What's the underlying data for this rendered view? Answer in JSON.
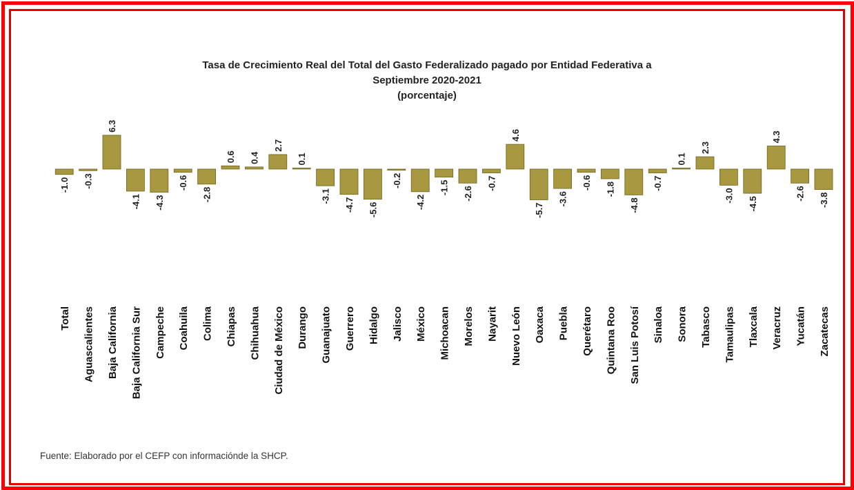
{
  "chart_data": {
    "type": "bar",
    "title_lines": [
      "Tasa de Crecimiento Real del Total del Gasto Federalizado pagado por Entidad Federativa a",
      "Septiembre 2020-2021",
      "(porcentaje)"
    ],
    "categories": [
      "Total",
      "Aguascalientes",
      "Baja California",
      "Baja California Sur",
      "Campeche",
      "Coahuila",
      "Colima",
      "Chiapas",
      "Chihuahua",
      "Ciudad de México",
      "Durango",
      "Guanajuato",
      "Guerrero",
      "Hidalgo",
      "Jalisco",
      "México",
      "Michoacan",
      "Morelos",
      "Nayarit",
      "Nuevo León",
      "Oaxaca",
      "Puebla",
      "Querétaro",
      "Quintana Roo",
      "San Luis Potosí",
      "Sinaloa",
      "Sonora",
      "Tabasco",
      "Tamaulipas",
      "Tlaxcala",
      "Veracruz",
      "Yucatán",
      "Zacatecas"
    ],
    "values": [
      -1.0,
      -0.3,
      6.3,
      -4.1,
      -4.3,
      -0.6,
      -2.8,
      0.6,
      0.4,
      2.7,
      0.1,
      -3.1,
      -4.7,
      -5.6,
      -0.2,
      -4.2,
      -1.5,
      -2.6,
      -0.7,
      4.6,
      -5.7,
      -3.6,
      -0.6,
      -1.8,
      -4.8,
      -0.7,
      0.1,
      2.3,
      -3.0,
      -4.5,
      4.3,
      -2.6,
      -3.8
    ],
    "labels": [
      "-1.0",
      "-0.3",
      "6.3",
      "-4.1",
      "-4.3",
      "-0.6",
      "-2.8",
      "0.6",
      "0.4",
      "2.7",
      "0.1",
      "-3.1",
      "-4.7",
      "-5.6",
      "-0.2",
      "-4.2",
      "-1.5",
      "-2.6",
      "-0.7",
      "4.6",
      "-5.7",
      "-3.6",
      "-0.6",
      "-1.8",
      "-4.8",
      "-0.7",
      "0.1",
      "2.3",
      "-3.0",
      "-4.5",
      "4.3",
      "-2.6",
      "-3.8"
    ],
    "bar_color": "#a89840",
    "bar_edge_color": "#6e6320",
    "xlabel": "",
    "ylabel": ""
  },
  "footer": {
    "source": "Fuente: Elaborado por el CEFP con informaciónde la SHCP."
  }
}
